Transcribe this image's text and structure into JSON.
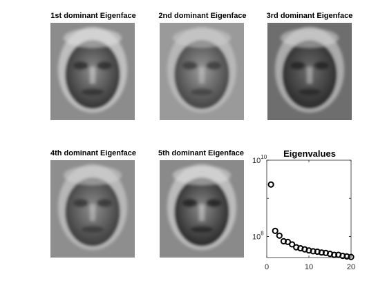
{
  "panels": [
    {
      "title": "1st dominant Eigenface",
      "tone": "#8c8c8c",
      "dark": "#2a2a2a",
      "light": "#e8e8e8"
    },
    {
      "title": "2nd dominant Eigenface",
      "tone": "#9a9a9a",
      "dark": "#3a3a3a",
      "light": "#d0d0d0"
    },
    {
      "title": "3rd dominant Eigenface",
      "tone": "#6e6e6e",
      "dark": "#222222",
      "light": "#dcdcdc"
    },
    {
      "title": "4th dominant Eigenface",
      "tone": "#8e8e8e",
      "dark": "#333333",
      "light": "#d8d8d8"
    },
    {
      "title": "5th dominant Eigenface",
      "tone": "#8a8a8a",
      "dark": "#1e1e1e",
      "light": "#e4e4e4"
    }
  ],
  "chart_data": {
    "type": "scatter",
    "title": "Eigenvalues",
    "xlabel": "",
    "ylabel": "",
    "yscale": "log",
    "xlim": [
      0,
      20
    ],
    "ylim": [
      28000000,
      10000000000
    ],
    "x_ticks": [
      "0",
      "10",
      "20"
    ],
    "y_ticks": [
      {
        "base": "10",
        "exp": "8",
        "value": 100000000
      },
      {
        "base": "10",
        "exp": "10",
        "value": 10000000000
      }
    ],
    "marker": "circle-open",
    "color": "#000000",
    "grid": false,
    "x": [
      1,
      2,
      3,
      4,
      5,
      6,
      7,
      8,
      9,
      10,
      11,
      12,
      13,
      14,
      15,
      16,
      17,
      18,
      19,
      20
    ],
    "y": [
      2300000000,
      140000000,
      105000000,
      75000000,
      72000000,
      62000000,
      52000000,
      49000000,
      46000000,
      43000000,
      41000000,
      40000000,
      38000000,
      37000000,
      35000000,
      33000000,
      33000000,
      31000000,
      30000000,
      29000000
    ]
  }
}
